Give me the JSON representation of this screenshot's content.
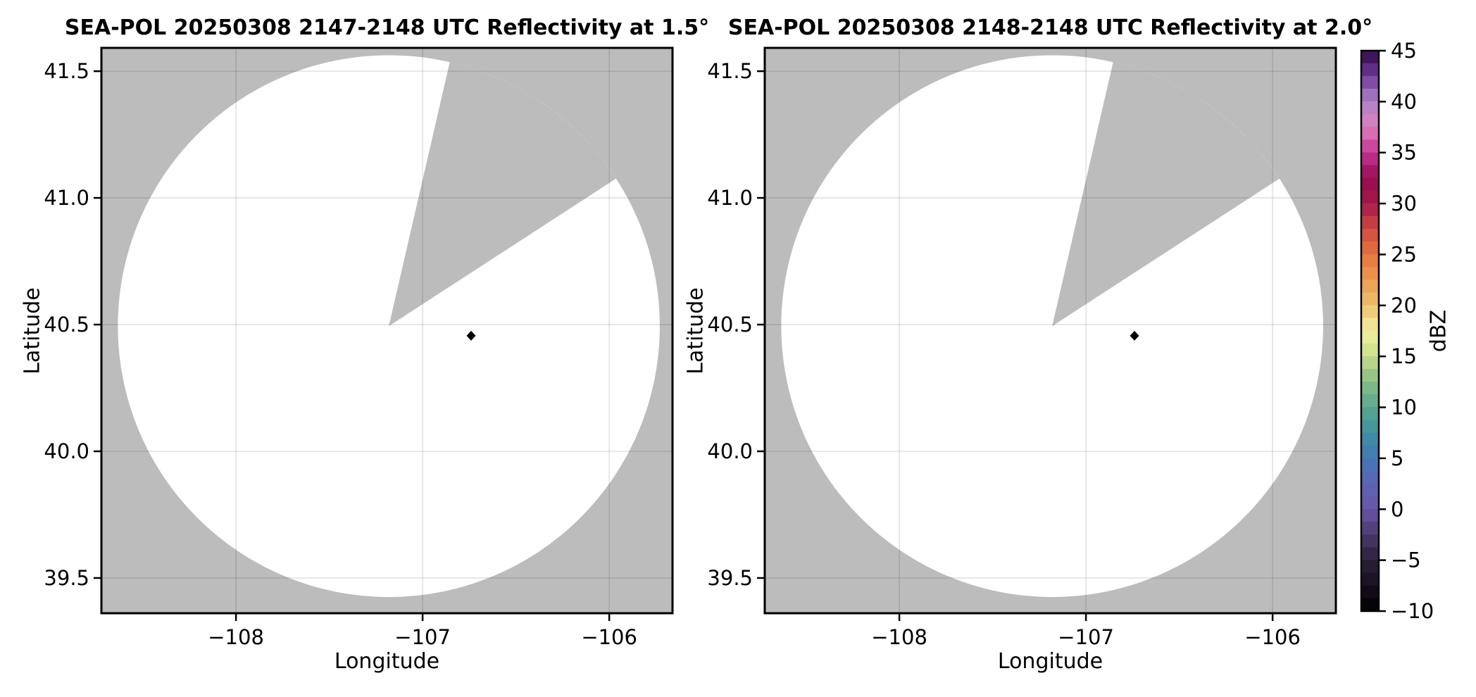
{
  "figure": {
    "type": "radar-reflectivity-ppi-pair",
    "background": "#ffffff"
  },
  "style": {
    "panel_bg": "#bcbcbc",
    "coverage": "#ffffff",
    "grid": "rgba(0,0,0,0.10)",
    "axes": "#000000",
    "marker": "#000000",
    "text": "#000000"
  },
  "panels": [
    {
      "title": "SEA-POL 20250308 2147-2148 UTC Reflectivity at 1.5°",
      "xlabel": "Longitude",
      "ylabel": "Latitude",
      "xtick_labels": [
        "−108",
        "−107",
        "−106"
      ],
      "ytick_labels": [
        "39.5",
        "40.0",
        "40.5",
        "41.0",
        "41.5"
      ]
    },
    {
      "title": "SEA-POL 20250308 2148-2148 UTC Reflectivity at 2.0°",
      "xlabel": "Longitude",
      "ylabel": "Latitude",
      "xtick_labels": [
        "−108",
        "−107",
        "−106"
      ],
      "ytick_labels": [
        "39.5",
        "40.0",
        "40.5",
        "41.0",
        "41.5"
      ]
    }
  ],
  "colorbar": {
    "label": "dBZ",
    "vmin": -10,
    "vmax": 45,
    "bands": 44,
    "ticks": [
      45,
      40,
      35,
      30,
      25,
      20,
      15,
      10,
      5,
      0,
      -5,
      -10
    ],
    "tick_labels": [
      "45",
      "40",
      "35",
      "30",
      "25",
      "20",
      "15",
      "10",
      "5",
      "0",
      "−5",
      "−10"
    ],
    "levels": [
      [
        -10,
        "#000000"
      ],
      [
        -7.5,
        "#150f1e"
      ],
      [
        -5,
        "#2c2139"
      ],
      [
        -2.5,
        "#4a3a6b"
      ],
      [
        0,
        "#6a55a8"
      ],
      [
        2.5,
        "#5b64b5"
      ],
      [
        5,
        "#4279b7"
      ],
      [
        7.5,
        "#40909f"
      ],
      [
        10,
        "#5aa88f"
      ],
      [
        12.5,
        "#87bd86"
      ],
      [
        15,
        "#c8de8a"
      ],
      [
        17.5,
        "#f3f0a2"
      ],
      [
        20,
        "#ecc06e"
      ],
      [
        22.5,
        "#eb9b51"
      ],
      [
        25,
        "#e4743e"
      ],
      [
        27.5,
        "#cf4a42"
      ],
      [
        30,
        "#a5174a"
      ],
      [
        32.5,
        "#970c52"
      ],
      [
        35,
        "#c73494"
      ],
      [
        37.5,
        "#dd80c0"
      ],
      [
        40,
        "#ab84c6"
      ],
      [
        42.5,
        "#71399b"
      ],
      [
        45,
        "#2f0a45"
      ]
    ]
  },
  "chart_data": [
    {
      "type": "radar_ppi",
      "title": "SEA-POL 20250308 2147-2148 UTC Reflectivity at 1.5°",
      "xlabel": "Longitude",
      "ylabel": "Latitude",
      "xlim": [
        -108.721,
        -105.661
      ],
      "ylim": [
        39.361,
        41.592
      ],
      "xticks": [
        -108,
        -107,
        -106
      ],
      "yticks": [
        39.5,
        40.0,
        40.5,
        41.0,
        41.5
      ],
      "grid": true,
      "radar_lon": -107.181,
      "radar_lat": 40.494,
      "range_radius_deg_lat": 1.069,
      "missing_sector_azimuth_deg": [
        13,
        57
      ],
      "site_marker": {
        "lon": -106.74,
        "lat": 40.456,
        "shape": "diamond"
      },
      "field": "reflectivity",
      "units": "dBZ",
      "value_range": [
        -10,
        45
      ],
      "echoes": "none visible; scanned coverage circle is blank (white), unscanned sector and out-of-range area gray"
    },
    {
      "type": "radar_ppi",
      "title": "SEA-POL 20250308 2148-2148 UTC Reflectivity at 2.0°",
      "xlabel": "Longitude",
      "ylabel": "Latitude",
      "xlim": [
        -108.721,
        -105.661
      ],
      "ylim": [
        39.361,
        41.592
      ],
      "xticks": [
        -108,
        -107,
        -106
      ],
      "yticks": [
        39.5,
        40.0,
        40.5,
        41.0,
        41.5
      ],
      "grid": true,
      "radar_lon": -107.181,
      "radar_lat": 40.494,
      "range_radius_deg_lat": 1.069,
      "missing_sector_azimuth_deg": [
        13,
        57
      ],
      "site_marker": {
        "lon": -106.74,
        "lat": 40.456,
        "shape": "diamond"
      },
      "field": "reflectivity",
      "units": "dBZ",
      "value_range": [
        -10,
        45
      ],
      "echoes": "none visible; scanned coverage circle is blank (white), unscanned sector and out-of-range area gray"
    }
  ]
}
